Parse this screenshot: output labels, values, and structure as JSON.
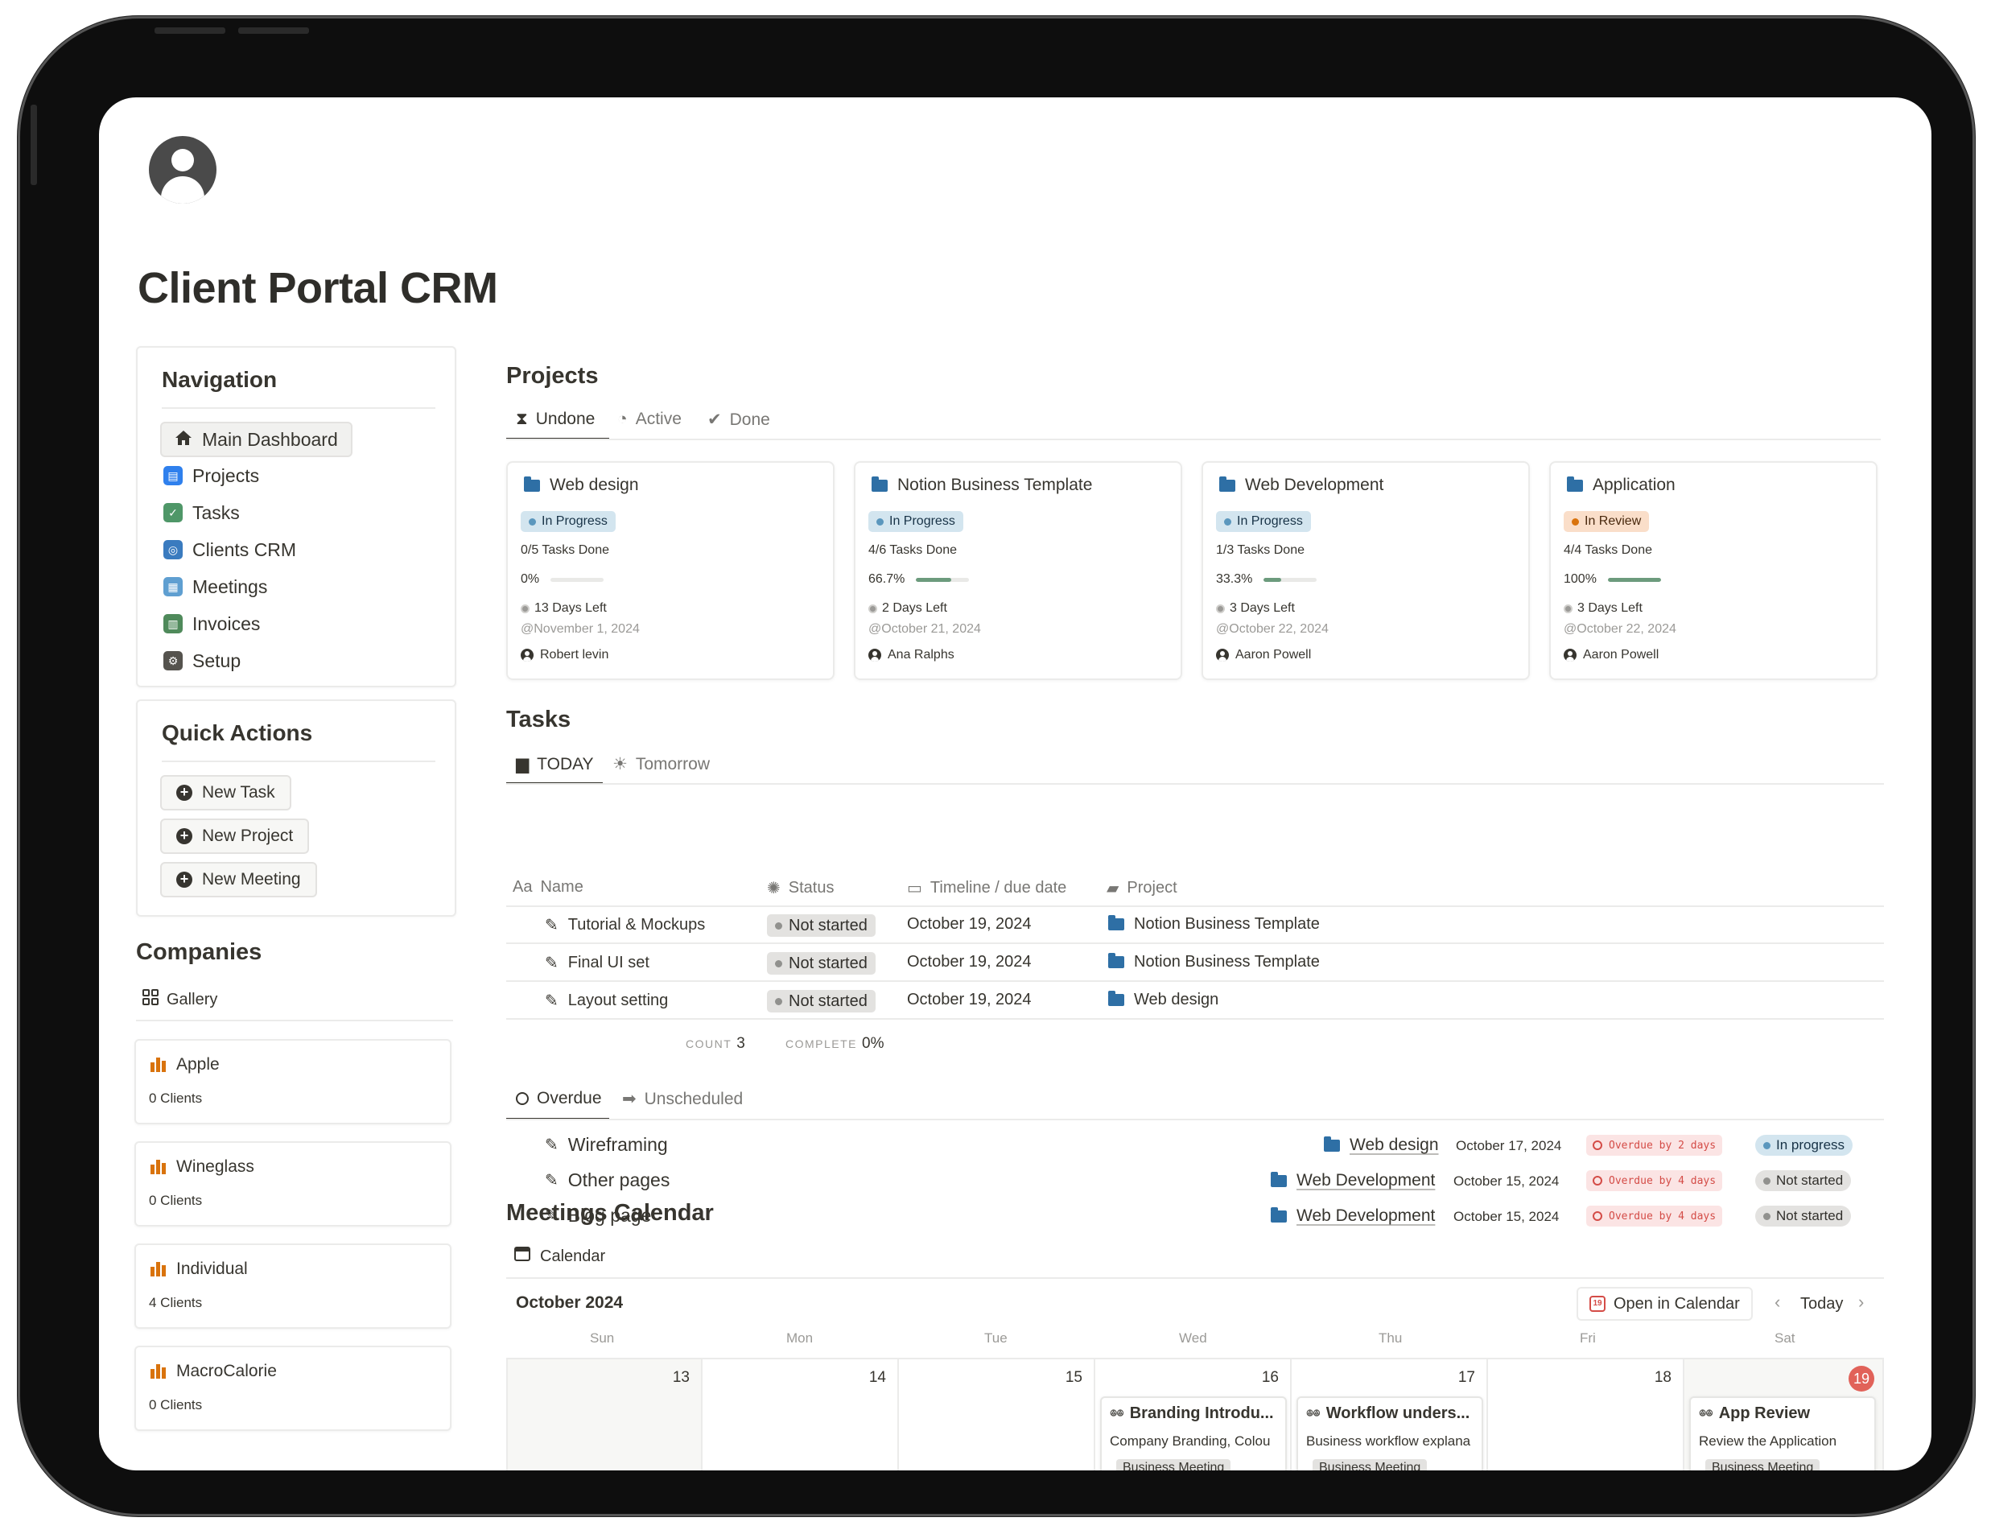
{
  "page": {
    "title": "Client Portal CRM"
  },
  "navigation": {
    "title": "Navigation",
    "items": [
      {
        "label": "Main Dashboard",
        "icon": "home-icon",
        "color": "#37352f"
      },
      {
        "label": "Projects",
        "icon": "calendar-square-icon",
        "color": "#2f80ed"
      },
      {
        "label": "Tasks",
        "icon": "check-square-icon",
        "color": "#4f9768"
      },
      {
        "label": "Clients CRM",
        "icon": "target-square-icon",
        "color": "#3a7bbf"
      },
      {
        "label": "Meetings",
        "icon": "grid-square-icon",
        "color": "#5f9fd1"
      },
      {
        "label": "Invoices",
        "icon": "document-square-icon",
        "color": "#4f8a5b"
      },
      {
        "label": "Setup",
        "icon": "gear-square-icon",
        "color": "#55534e"
      }
    ]
  },
  "quick_actions": {
    "title": "Quick Actions",
    "buttons": [
      "New Task",
      "New Project",
      "New Meeting"
    ]
  },
  "companies": {
    "title": "Companies",
    "view": "Gallery",
    "items": [
      {
        "name": "Apple",
        "clients": "0 Clients"
      },
      {
        "name": "Wineglass",
        "clients": "0 Clients"
      },
      {
        "name": "Individual",
        "clients": "4 Clients"
      },
      {
        "name": "MacroCalorie",
        "clients": "0 Clients"
      }
    ]
  },
  "projects": {
    "title": "Projects",
    "tabs": [
      "Undone",
      "Active",
      "Done"
    ],
    "cards": [
      {
        "name": "Web design",
        "status": "In Progress",
        "tasks": "0/5 Tasks Done",
        "pct_label": "0%",
        "progress": 0,
        "days": "13 Days Left",
        "date": "@November 1, 2024",
        "person": "Robert levin"
      },
      {
        "name": "Notion Business Template",
        "status": "In Progress",
        "tasks": "4/6 Tasks Done",
        "pct_label": "66.7%",
        "progress": 0.667,
        "days": "2 Days Left",
        "date": "@October 21, 2024",
        "person": "Ana Ralphs"
      },
      {
        "name": "Web Development",
        "status": "In Progress",
        "tasks": "1/3 Tasks Done",
        "pct_label": "33.3%",
        "progress": 0.333,
        "days": "3 Days Left",
        "date": "@October 22, 2024",
        "person": "Aaron Powell"
      },
      {
        "name": "Application",
        "status": "In Review",
        "tasks": "4/4 Tasks Done",
        "pct_label": "100%",
        "progress": 1,
        "days": "3 Days Left",
        "date": "@October 22, 2024",
        "person": "Aaron Powell"
      }
    ]
  },
  "tasks": {
    "title": "Tasks",
    "tabs": [
      "TODAY",
      "Tomorrow"
    ],
    "columns": {
      "name": "Name",
      "status": "Status",
      "timeline": "Timeline / due date",
      "project": "Project",
      "name_prefix": "Aa"
    },
    "rows": [
      {
        "name": "Tutorial & Mockups",
        "status": "Not started",
        "date": "October 19, 2024",
        "project": "Notion Business Template"
      },
      {
        "name": "Final UI set",
        "status": "Not started",
        "date": "October 19, 2024",
        "project": "Notion Business Template"
      },
      {
        "name": "Layout setting",
        "status": "Not started",
        "date": "October 19, 2024",
        "project": "Web design"
      }
    ],
    "summary": {
      "count_label": "COUNT",
      "count": "3",
      "complete_label": "COMPLETE",
      "complete": "0%"
    }
  },
  "overdue": {
    "tabs": [
      "Overdue",
      "Unscheduled"
    ],
    "rows": [
      {
        "name": "Wireframing",
        "project": "Web design",
        "date": "October 17, 2024",
        "flag": "Overdue by 2 days",
        "status": "In progress"
      },
      {
        "name": "Other pages",
        "project": "Web Development",
        "date": "October 15, 2024",
        "flag": "Overdue by 4 days",
        "status": "Not started"
      },
      {
        "name": "Blog page",
        "project": "Web Development",
        "date": "October 15, 2024",
        "flag": "Overdue by 4 days",
        "status": "Not started"
      }
    ]
  },
  "meetings": {
    "title": "Meetings Calendar",
    "view": "Calendar",
    "month": "October 2024",
    "open_label": "Open in Calendar",
    "today_label": "Today",
    "weekdays": [
      "Sun",
      "Mon",
      "Tue",
      "Wed",
      "Thu",
      "Fri",
      "Sat"
    ],
    "days": [
      "13",
      "14",
      "15",
      "16",
      "17",
      "18",
      "19"
    ],
    "today_day": "19",
    "events": [
      {
        "day_index": 3,
        "title": "Branding Introdu...",
        "desc": "Company Branding, Colou",
        "tag": "Business Meeting"
      },
      {
        "day_index": 4,
        "title": "Workflow unders...",
        "desc": "Business workflow explana",
        "tag": "Business Meeting"
      },
      {
        "day_index": 6,
        "title": "App Review",
        "desc": "Review the Application",
        "tag": "Business Meeting"
      }
    ]
  }
}
